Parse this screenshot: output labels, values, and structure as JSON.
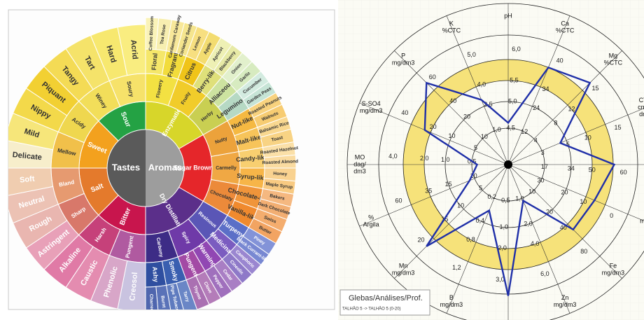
{
  "flavor_wheel": {
    "center": [
      "Tastes",
      "Aromas"
    ],
    "tastes": {
      "groups": [
        "Bitter",
        "Salt",
        "Sweet",
        "Sour"
      ],
      "subgroups": [
        "Pungent",
        "Harsh",
        "Sharp",
        "Bland",
        "Mellow",
        "Acidy",
        "Winey",
        "Soury"
      ],
      "descriptors": [
        "Creosol",
        "Phenolic",
        "Caustic",
        "Alkaline",
        "Astringent",
        "Rough",
        "Neutral",
        "Soft",
        "Delicate",
        "Mild",
        "Nippy",
        "Piquant",
        "Tangy",
        "Tart",
        "Hard",
        "Acrid"
      ]
    },
    "aromas": {
      "groups": [
        "Enzymatic",
        "Sugar Browning",
        "Dry Distillation"
      ],
      "subgroups": [
        "Flowery",
        "Fruity",
        "Herby",
        "Nutty",
        "Carmelly",
        "Chocolaty",
        "Resinous",
        "Spicy",
        "Carbony"
      ],
      "descriptors": [
        "Floral",
        "Fragrant",
        "Citrus",
        "Berry-like",
        "Alliaceous",
        "Leguminous",
        "Nut-like",
        "Malt-like",
        "Candy-like",
        "Syrup-like",
        "Chocolate-like",
        "Vanilla-like",
        "Turpeny",
        "Medicinal",
        "Warming",
        "Pungent",
        "Smoky",
        "Ashy"
      ],
      "notes": [
        "Coffee Blossom",
        "Tea Rose",
        "Cardamom Caraway",
        "Coriander Seeds",
        "Lemon",
        "Apple",
        "Apricot",
        "Blackberry",
        "Onion",
        "Garlic",
        "Cucumber",
        "Garden Peas",
        "Roasted Peanuts",
        "Walnuts",
        "Balsamic Rice",
        "Toast",
        "Roasted Hazelnut",
        "Roasted Almond",
        "Honey",
        "Maple Syrup",
        "Bakers",
        "Dark Chocolate",
        "Swiss",
        "Butter",
        "Piney",
        "Black Currant-like",
        "Camphoric",
        "Cineolic",
        "Cedar",
        "Pepper",
        "Clove",
        "Thyme",
        "Tarry",
        "Pipe Tobacco",
        "Burnt",
        "Charred"
      ]
    }
  },
  "radar": {
    "axes": [
      {
        "name": [
          "pH"
        ],
        "ticks": [
          {
            "value": 4.5,
            "label": "4,5"
          },
          {
            "value": 5,
            "label": "5,0"
          },
          {
            "value": 5.5,
            "label": "5,5"
          },
          {
            "value": 6,
            "label": "6,0"
          }
        ],
        "value": 4.6
      },
      {
        "name": [
          "Ca",
          "%CTC"
        ],
        "ticks": [
          12,
          24,
          34,
          40
        ],
        "value": 38
      },
      {
        "name": [
          "Mg",
          "%CTC"
        ],
        "ticks": [
          4,
          8,
          12,
          15
        ],
        "value": 15
      },
      {
        "name": [
          "CTC",
          "cmol/",
          "dm3"
        ],
        "ticks": [
          3,
          5,
          10,
          15
        ],
        "value": 4.5
      },
      {
        "name": [
          "V%"
        ],
        "ticks": [
          17,
          34,
          50,
          60
        ],
        "value": 57
      },
      {
        "name": [
          "m%"
        ],
        "ticks": [
          30,
          20,
          10,
          0
        ],
        "value": 7
      },
      {
        "name": [
          "Fe",
          "mg/dm3"
        ],
        "ticks": [
          10,
          20,
          40,
          80
        ],
        "value": 50
      },
      {
        "name": [
          "Zn",
          "mg/dm3"
        ],
        "ticks": [
          {
            "value": 1,
            "label": "1,0"
          },
          {
            "value": 2,
            "label": "2,0"
          },
          {
            "value": 4,
            "label": "4,0"
          },
          {
            "value": 6,
            "label": "6,0"
          }
        ],
        "value": 1.1
      },
      {
        "ticks": [
          {
            "value": 0.5,
            "label": "0,5"
          },
          {
            "value": 1,
            "label": "1,0"
          },
          {
            "value": 2,
            "label": "2,0"
          },
          {
            "value": 3,
            "label": "3,0"
          }
        ],
        "value": 3.5
      },
      {
        "name": [
          "B",
          "mg/dm3"
        ],
        "ticks": [
          {
            "value": 0.2,
            "label": "0,2"
          },
          {
            "value": 0.4,
            "label": "0,4"
          },
          {
            "value": 0.8,
            "label": "0,8"
          },
          {
            "value": 1.2,
            "label": "1,2"
          }
        ],
        "value": 0.3
      },
      {
        "name": [
          "Mn",
          "mg/dm3"
        ],
        "ticks": [
          5,
          10,
          15,
          20
        ],
        "value": 20
      },
      {
        "name": [
          "%",
          "Argila"
        ],
        "ticks": [
          10,
          15,
          35,
          60
        ],
        "value": 11
      },
      {
        "name": [
          "MO",
          "dag/",
          "dm3"
        ],
        "ticks": [
          {
            "value": 0.5,
            "label": "0,5"
          },
          {
            "value": 1,
            "label": "1,0"
          },
          {
            "value": 2,
            "label": "2,0"
          },
          {
            "value": 4,
            "label": "4,0"
          }
        ],
        "value": 0.4
      },
      {
        "name": [
          "S-SO4",
          "mg/dm3"
        ],
        "ticks": [
          5,
          10,
          20,
          40
        ],
        "value": 24
      },
      {
        "name": [
          "P",
          "mg/dm3"
        ],
        "ticks": [
          10,
          20,
          40,
          60
        ],
        "value": 60
      },
      {
        "name": [
          "K",
          "%CTC"
        ],
        "ticks": [
          {
            "value": 1,
            "label": "1,0"
          },
          {
            "value": 2.5,
            "label": "2,5"
          },
          {
            "value": 4,
            "label": "4,0"
          },
          {
            "value": 5,
            "label": "5,0"
          }
        ],
        "value": 3
      }
    ],
    "legend": {
      "title": "Glebas/Análises/Prof.",
      "entry": "TALHÃO 5 -> TALHÃO 5 (0-20)"
    }
  }
}
